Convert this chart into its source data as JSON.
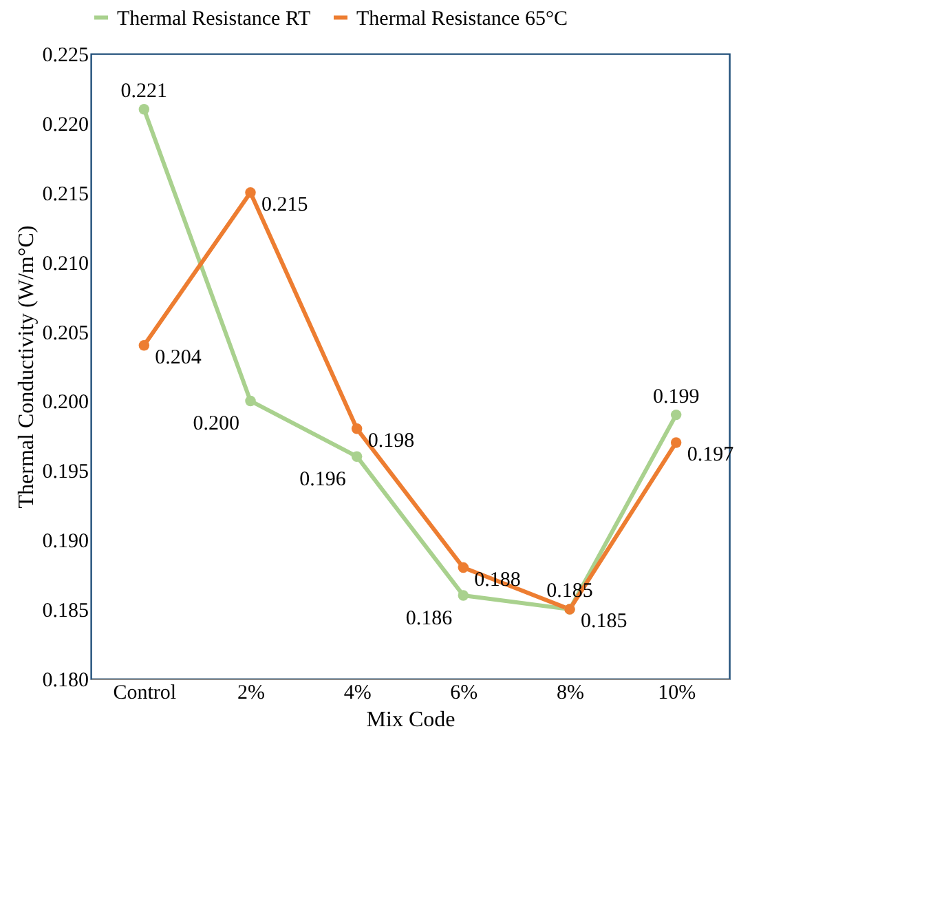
{
  "chart_data": {
    "type": "line",
    "xlabel": "Mix Code",
    "ylabel": "Thermal Conductivity (W/m°C)",
    "categories": [
      "Control",
      "2%",
      "4%",
      "6%",
      "8%",
      "10%"
    ],
    "series": [
      {
        "name": "Thermal Resistance RT",
        "color": "#a9d18e",
        "values": [
          0.221,
          0.2,
          0.196,
          0.186,
          0.185,
          0.199
        ],
        "value_labels": [
          "0.221",
          "0.200",
          "0.196",
          "0.186",
          "0.185",
          "0.199"
        ]
      },
      {
        "name": "Thermal Resistance 65°C",
        "color": "#ed7d31",
        "values": [
          0.204,
          0.215,
          0.198,
          0.188,
          0.185,
          0.197
        ],
        "value_labels": [
          "0.204",
          "0.215",
          "0.198",
          "0.188",
          "0.185",
          "0.197"
        ]
      }
    ],
    "ylim": [
      0.18,
      0.225
    ],
    "yticks": [
      {
        "value": 0.18,
        "label": "0.180"
      },
      0.185,
      {
        "value": 0.19,
        "label": "0.190"
      },
      0.195,
      {
        "value": 0.2,
        "label": "0.200"
      },
      0.205,
      {
        "value": 0.21,
        "label": "0.210"
      },
      0.215,
      {
        "value": 0.22,
        "label": "0.220"
      },
      0.225
    ],
    "legend": "top",
    "marker": "circle",
    "line_style": "solid",
    "grid": false
  }
}
